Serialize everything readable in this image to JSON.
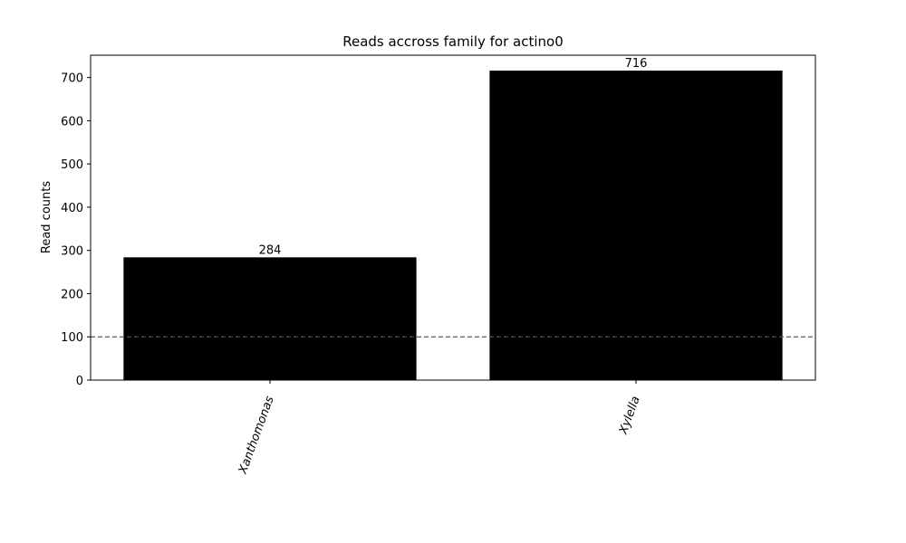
{
  "chart_data": {
    "type": "bar",
    "title": "Reads accross family for actino0",
    "xlabel": "",
    "ylabel": "Read counts",
    "categories": [
      "Xanthomonas",
      "Xylella"
    ],
    "values": [
      284,
      716
    ],
    "data_labels": [
      "284",
      "716"
    ],
    "ylim": [
      0,
      751.6
    ],
    "yticks": [
      0,
      100,
      200,
      300,
      400,
      500,
      600,
      700
    ],
    "ytick_labels": [
      "0",
      "100",
      "200",
      "300",
      "400",
      "500",
      "600",
      "700"
    ],
    "xtick_rotation_deg": -70,
    "threshold_line": {
      "value": 100,
      "style": "dashed",
      "color": "#555555"
    },
    "bar_color": "#000000",
    "grid": false,
    "legend": "none"
  }
}
